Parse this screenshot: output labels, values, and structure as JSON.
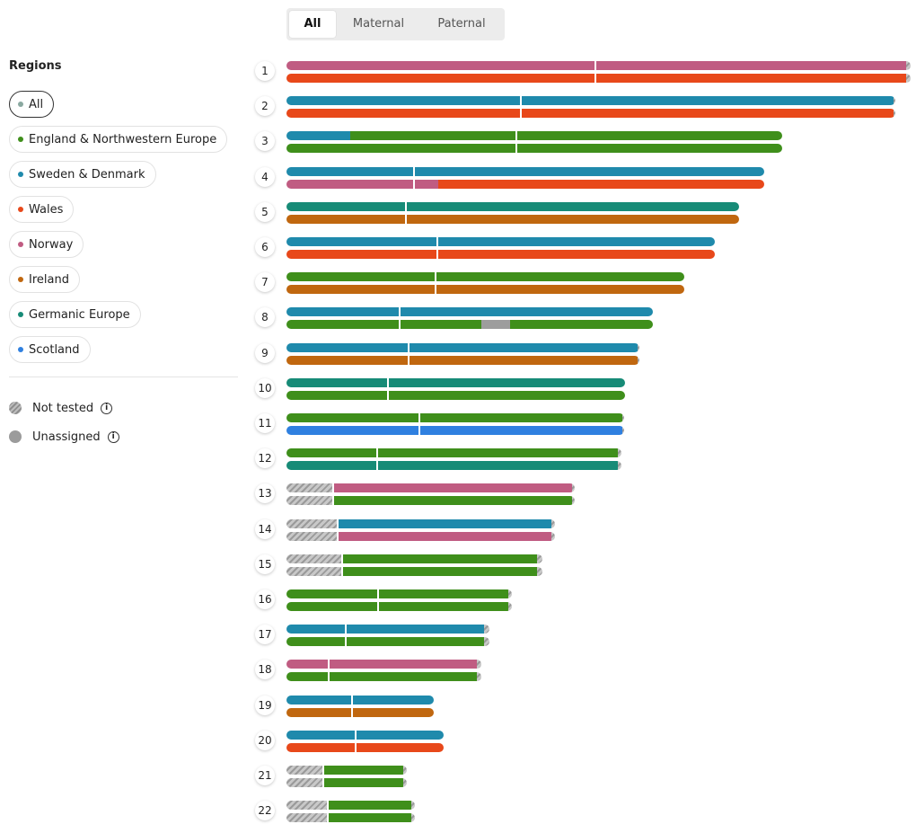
{
  "tabs": [
    {
      "label": "All",
      "active": true
    },
    {
      "label": "Maternal",
      "active": false
    },
    {
      "label": "Paternal",
      "active": false
    }
  ],
  "sidebar": {
    "title": "Regions",
    "regions": [
      {
        "key": "all",
        "label": "All",
        "active": true
      },
      {
        "key": "eng",
        "label": "England & Northwestern Europe",
        "active": false
      },
      {
        "key": "swe",
        "label": "Sweden & Denmark",
        "active": false
      },
      {
        "key": "wal",
        "label": "Wales",
        "active": false
      },
      {
        "key": "nor",
        "label": "Norway",
        "active": false
      },
      {
        "key": "ire",
        "label": "Ireland",
        "active": false
      },
      {
        "key": "ger",
        "label": "Germanic Europe",
        "active": false
      },
      {
        "key": "sco",
        "label": "Scotland",
        "active": false
      }
    ],
    "legend": {
      "not_tested": "Not tested",
      "unassigned": "Unassigned",
      "info_symbol": "i"
    }
  },
  "colors": {
    "eng": "#3f8f1b",
    "swe": "#1f8aac",
    "wal": "#e8481a",
    "nor": "#c05c82",
    "ire": "#c0670f",
    "ger": "#178b77",
    "sco": "#2f80e0",
    "unassigned": "#9d9d9d",
    "all_dot": "#8aa8a0"
  },
  "chromosome_scale_max": 695,
  "chromosomes": [
    {
      "label": "1",
      "length": 695,
      "centromere": 344,
      "copies": [
        [
          [
            "nor",
            0,
            690
          ],
          [
            "nt",
            690,
            695
          ]
        ],
        [
          [
            "wal",
            0,
            690
          ],
          [
            "nt",
            690,
            695
          ]
        ]
      ]
    },
    {
      "label": "2",
      "length": 678,
      "centromere": 261,
      "copies": [
        [
          [
            "swe",
            0,
            676
          ],
          [
            "nt",
            676,
            678
          ]
        ],
        [
          [
            "wal",
            0,
            676
          ],
          [
            "nt",
            676,
            678
          ]
        ]
      ]
    },
    {
      "label": "3",
      "length": 552,
      "centromere": 256,
      "copies": [
        [
          [
            "swe",
            0,
            71
          ],
          [
            "eng",
            71,
            552
          ]
        ],
        [
          [
            "eng",
            0,
            552
          ]
        ]
      ]
    },
    {
      "label": "4",
      "length": 532,
      "centromere": 142,
      "copies": [
        [
          [
            "swe",
            0,
            532
          ]
        ],
        [
          [
            "nor",
            0,
            169
          ],
          [
            "wal",
            169,
            532
          ]
        ]
      ]
    },
    {
      "label": "5",
      "length": 504,
      "centromere": 133,
      "copies": [
        [
          [
            "ger",
            0,
            504
          ]
        ],
        [
          [
            "ire",
            0,
            504
          ]
        ]
      ]
    },
    {
      "label": "6",
      "length": 477,
      "centromere": 168,
      "copies": [
        [
          [
            "swe",
            0,
            477
          ]
        ],
        [
          [
            "wal",
            0,
            477
          ]
        ]
      ]
    },
    {
      "label": "7",
      "length": 443,
      "centromere": 166,
      "copies": [
        [
          [
            "eng",
            0,
            443
          ]
        ],
        [
          [
            "ire",
            0,
            443
          ]
        ]
      ]
    },
    {
      "label": "8",
      "length": 408,
      "centromere": 126,
      "copies": [
        [
          [
            "swe",
            0,
            408
          ]
        ],
        [
          [
            "eng",
            0,
            217
          ],
          [
            "un",
            217,
            249
          ],
          [
            "eng",
            249,
            408
          ]
        ]
      ]
    },
    {
      "label": "9",
      "length": 393,
      "centromere": 136,
      "copies": [
        [
          [
            "swe",
            0,
            391
          ],
          [
            "nt",
            391,
            393
          ]
        ],
        [
          [
            "ire",
            0,
            391
          ],
          [
            "nt",
            391,
            393
          ]
        ]
      ]
    },
    {
      "label": "10",
      "length": 377,
      "centromere": 113,
      "copies": [
        [
          [
            "ger",
            0,
            377
          ]
        ],
        [
          [
            "eng",
            0,
            377
          ]
        ]
      ]
    },
    {
      "label": "11",
      "length": 376,
      "centromere": 148,
      "copies": [
        [
          [
            "eng",
            0,
            374
          ],
          [
            "nt",
            374,
            376
          ]
        ],
        [
          [
            "sco",
            0,
            374
          ],
          [
            "nt",
            374,
            376
          ]
        ]
      ]
    },
    {
      "label": "12",
      "length": 373,
      "centromere": 101,
      "copies": [
        [
          [
            "eng",
            0,
            369
          ],
          [
            "nt",
            369,
            373
          ]
        ],
        [
          [
            "ger",
            0,
            369
          ],
          [
            "nt",
            369,
            373
          ]
        ]
      ]
    },
    {
      "label": "13",
      "length": 321,
      "centromere": 52,
      "copies": [
        [
          [
            "nt",
            0,
            52
          ],
          [
            "nor",
            52,
            318
          ],
          [
            "nt",
            318,
            321
          ]
        ],
        [
          [
            "nt",
            0,
            52
          ],
          [
            "eng",
            52,
            318
          ],
          [
            "nt",
            318,
            321
          ]
        ]
      ]
    },
    {
      "label": "14",
      "length": 299,
      "centromere": 57,
      "copies": [
        [
          [
            "nt",
            0,
            57
          ],
          [
            "swe",
            57,
            295
          ],
          [
            "nt",
            295,
            299
          ]
        ],
        [
          [
            "nt",
            0,
            57
          ],
          [
            "nor",
            57,
            295
          ],
          [
            "nt",
            295,
            299
          ]
        ]
      ]
    },
    {
      "label": "15",
      "length": 285,
      "centromere": 62,
      "copies": [
        [
          [
            "nt",
            0,
            62
          ],
          [
            "eng",
            62,
            279
          ],
          [
            "nt",
            279,
            285
          ]
        ],
        [
          [
            "nt",
            0,
            62
          ],
          [
            "eng",
            62,
            279
          ],
          [
            "nt",
            279,
            285
          ]
        ]
      ]
    },
    {
      "label": "16",
      "length": 251,
      "centromere": 102,
      "copies": [
        [
          [
            "eng",
            0,
            247
          ],
          [
            "nt",
            247,
            251
          ]
        ],
        [
          [
            "eng",
            0,
            247
          ],
          [
            "nt",
            247,
            251
          ]
        ]
      ]
    },
    {
      "label": "17",
      "length": 226,
      "centromere": 66,
      "copies": [
        [
          [
            "swe",
            0,
            220
          ],
          [
            "nt",
            220,
            226
          ]
        ],
        [
          [
            "eng",
            0,
            220
          ],
          [
            "nt",
            220,
            226
          ]
        ]
      ]
    },
    {
      "label": "18",
      "length": 217,
      "centromere": 47,
      "copies": [
        [
          [
            "nor",
            0,
            212
          ],
          [
            "nt",
            212,
            217
          ]
        ],
        [
          [
            "eng",
            0,
            212
          ],
          [
            "nt",
            212,
            217
          ]
        ]
      ]
    },
    {
      "label": "19",
      "length": 164,
      "centromere": 73,
      "copies": [
        [
          [
            "swe",
            0,
            164
          ]
        ],
        [
          [
            "ire",
            0,
            164
          ]
        ]
      ]
    },
    {
      "label": "20",
      "length": 175,
      "centromere": 77,
      "copies": [
        [
          [
            "swe",
            0,
            175
          ]
        ],
        [
          [
            "wal",
            0,
            175
          ]
        ]
      ]
    },
    {
      "label": "21",
      "length": 134,
      "centromere": 41,
      "copies": [
        [
          [
            "nt",
            0,
            41
          ],
          [
            "eng",
            41,
            130
          ],
          [
            "nt",
            130,
            134
          ]
        ],
        [
          [
            "nt",
            0,
            41
          ],
          [
            "eng",
            41,
            130
          ],
          [
            "nt",
            130,
            134
          ]
        ]
      ]
    },
    {
      "label": "22",
      "length": 143,
      "centromere": 46,
      "copies": [
        [
          [
            "nt",
            0,
            46
          ],
          [
            "eng",
            46,
            139
          ],
          [
            "nt",
            139,
            143
          ]
        ],
        [
          [
            "nt",
            0,
            46
          ],
          [
            "eng",
            46,
            139
          ],
          [
            "nt",
            139,
            143
          ]
        ]
      ]
    }
  ]
}
